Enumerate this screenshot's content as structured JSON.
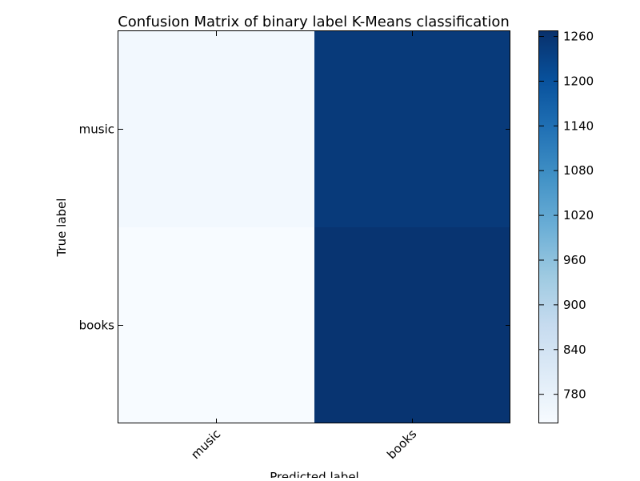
{
  "chart_data": {
    "type": "heatmap",
    "title": "Confusion Matrix of binary label K-Means classification",
    "xlabel": "Predicted label",
    "ylabel": "True label",
    "x_categories": [
      "music",
      "books"
    ],
    "y_categories": [
      "music",
      "books"
    ],
    "values": [
      [
        753,
        1247
      ],
      [
        741,
        1259
      ]
    ],
    "colormap": "Blues",
    "colorbar": {
      "min": 741,
      "max": 1267,
      "ticks": [
        780,
        840,
        900,
        960,
        1020,
        1080,
        1140,
        1200,
        1260
      ]
    },
    "grid": false
  }
}
